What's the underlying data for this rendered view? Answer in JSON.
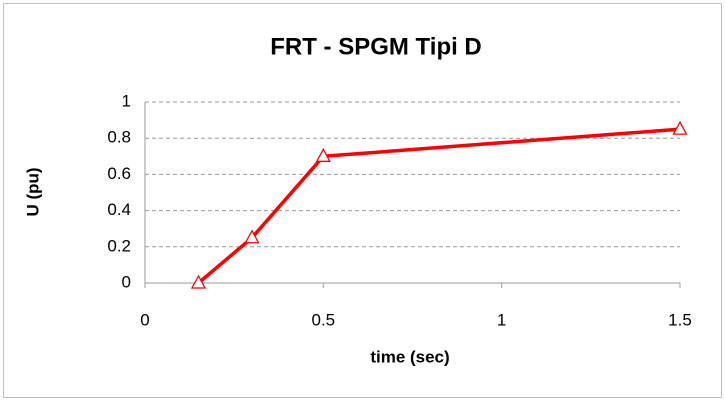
{
  "chart_data": {
    "type": "line",
    "title": "FRT - SPGM Tipi D",
    "x_label": "time (sec)",
    "y_label": "U (pu)",
    "x": [
      0.15,
      0.3,
      0.5,
      1.5
    ],
    "series": [
      {
        "color": "#ff0000",
        "values": [
          0,
          0.25,
          0.7,
          0.85
        ]
      }
    ],
    "xlim": [
      0,
      1.5
    ],
    "xticks": [
      0,
      0.5,
      1,
      1.5
    ],
    "ylim": [
      0,
      1
    ],
    "yticks": [
      0,
      0.2,
      0.4,
      0.6,
      0.8,
      1
    ],
    "grid": true
  }
}
